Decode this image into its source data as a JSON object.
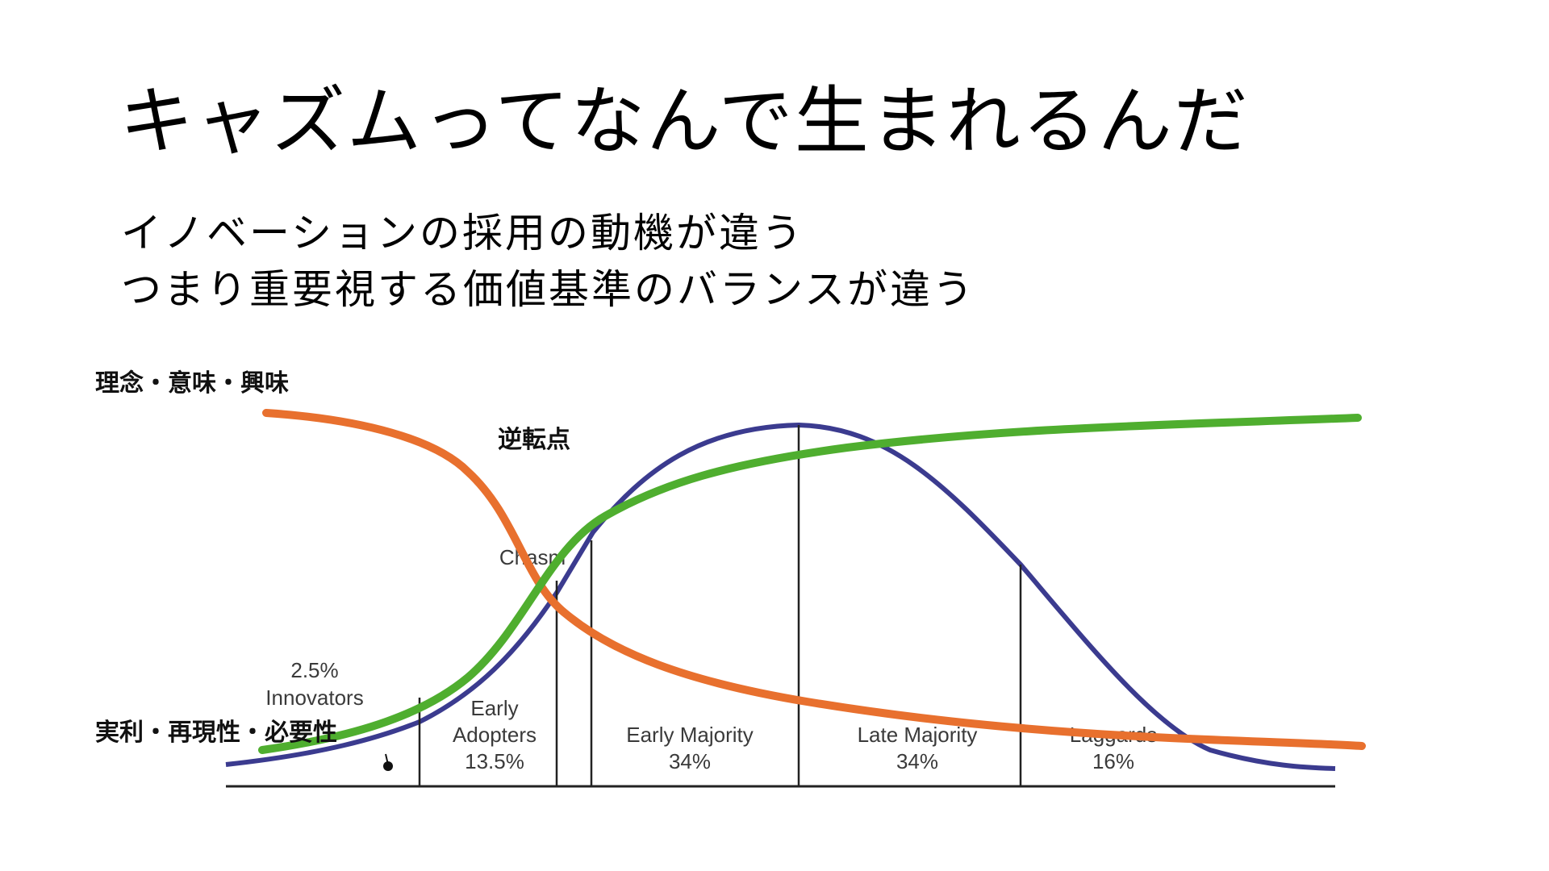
{
  "title": "キャズムってなんで生まれるんだ",
  "subtitle_lines": [
    "イノベーションの採用の動機が違う",
    "つまり重要視する価値基準のバランスが違う"
  ],
  "labels": {
    "top_left": "理念・意味・興味",
    "bottom_left": "実利・再現性・必要性",
    "crossover": "逆転点",
    "chasm": "Chasm"
  },
  "segments": [
    {
      "name": "Innovators",
      "pct": "2.5%"
    },
    {
      "name": "Early Adopters",
      "line1": "Early",
      "line2": "Adopters",
      "pct": "13.5%"
    },
    {
      "name": "Early Majority",
      "pct": "34%"
    },
    {
      "name": "Late Majority",
      "pct": "34%"
    },
    {
      "name": "Laggards",
      "pct": "16%"
    }
  ],
  "colors": {
    "bell_curve": "#3b3b8f",
    "orange_curve": "#e8702e",
    "green_curve": "#4fae2f",
    "divider": "#222222"
  }
}
